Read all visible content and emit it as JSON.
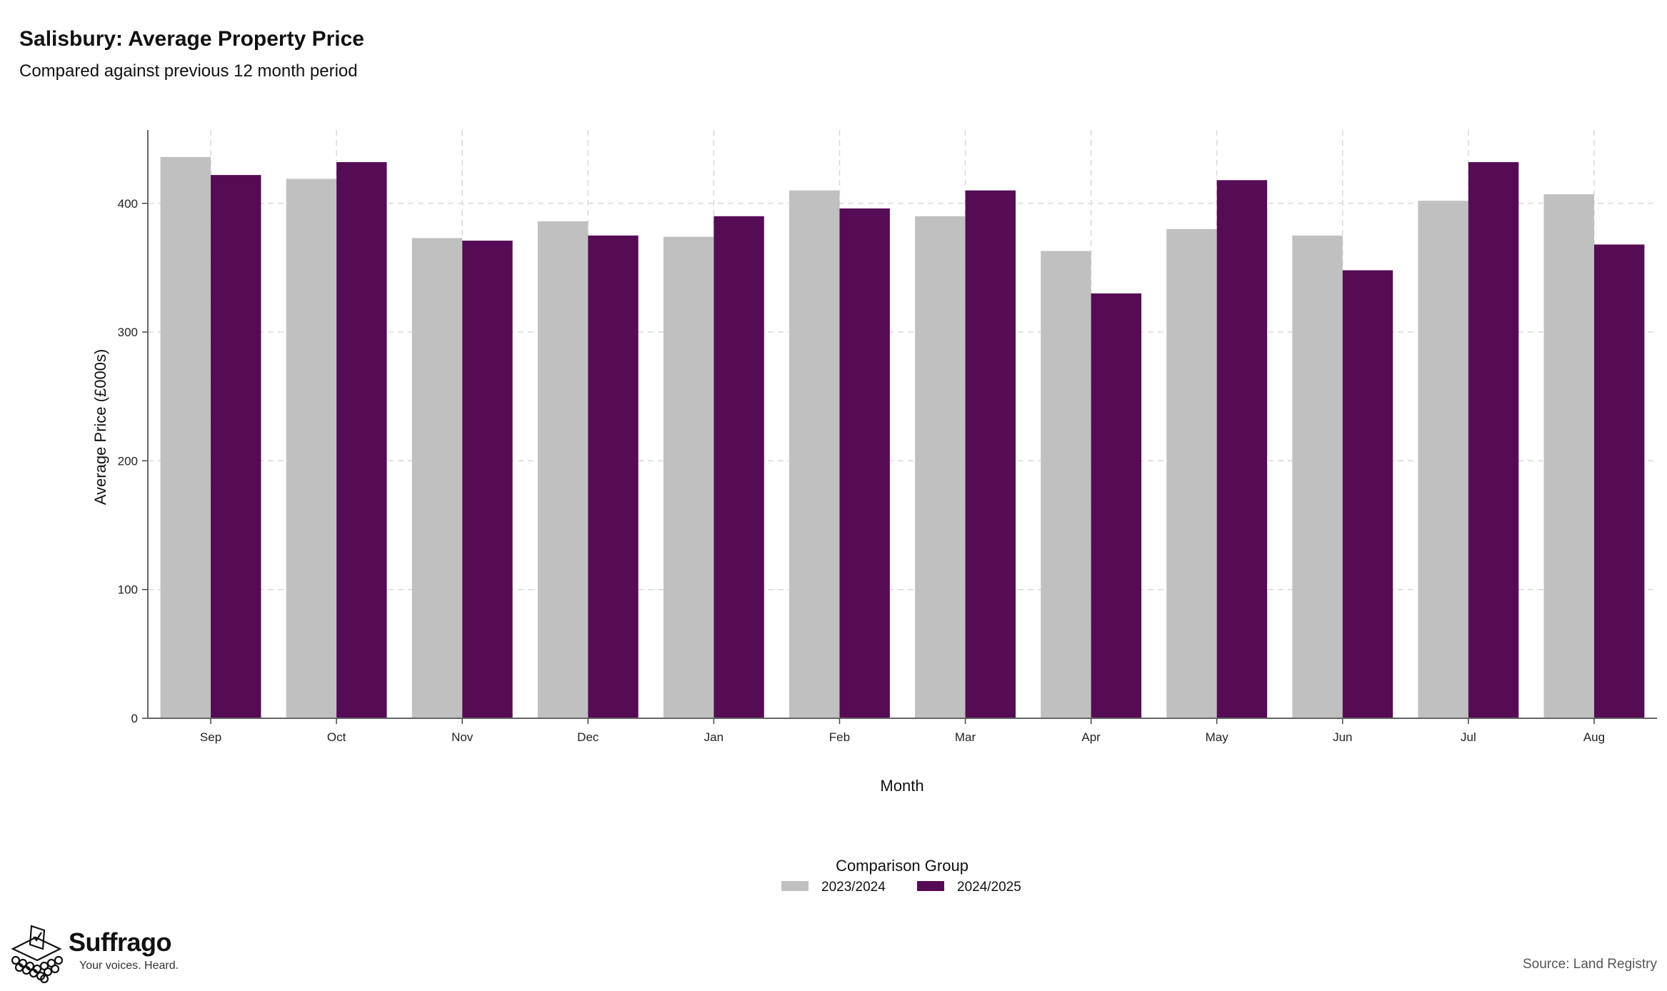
{
  "header": {
    "title": "Salisbury: Average Property Price",
    "subtitle": "Compared against previous 12 month period"
  },
  "source": "Source: Land Registry",
  "brand": {
    "name": "Suffrago",
    "tagline": "Your voices. Heard."
  },
  "colors": {
    "series_2023": "#c0c0c0",
    "series_2024": "#560c54",
    "grid": "#d9d9d9"
  },
  "chart_data": {
    "type": "bar",
    "xlabel": "Month",
    "ylabel": "Average Price (£000s)",
    "ylim": [
      0,
      457
    ],
    "yticks": [
      0,
      100,
      200,
      300,
      400
    ],
    "grid": true,
    "legend_title": "Comparison Group",
    "legend_position": "bottom",
    "categories": [
      "Sep",
      "Oct",
      "Nov",
      "Dec",
      "Jan",
      "Feb",
      "Mar",
      "Apr",
      "May",
      "Jun",
      "Jul",
      "Aug"
    ],
    "series": [
      {
        "name": "2023/2024",
        "values": [
          436,
          419,
          373,
          386,
          374,
          410,
          390,
          363,
          380,
          375,
          402,
          407
        ]
      },
      {
        "name": "2024/2025",
        "values": [
          422,
          432,
          371,
          375,
          390,
          396,
          410,
          330,
          418,
          348,
          432,
          368
        ]
      }
    ]
  }
}
